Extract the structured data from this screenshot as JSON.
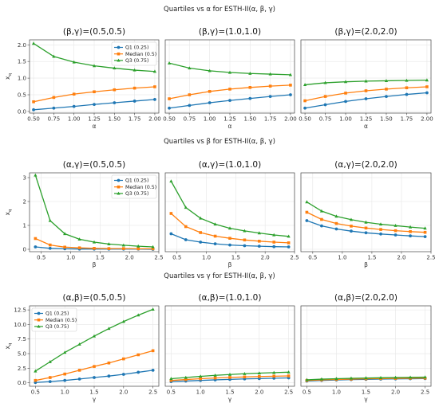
{
  "figure": {
    "colors": {
      "q1": "#1f77b4",
      "median": "#ff7f0e",
      "q3": "#2ca02c",
      "grid": "#e6e6e6",
      "axis": "#444444"
    }
  },
  "chart_data": [
    {
      "type": "line",
      "row_title": "Quartiles vs α for ESTH-II(α, β, γ)",
      "title": "(β,γ)=(0.5,0.5)",
      "xlabel": "α",
      "ylabel": "x_q",
      "xlim": [
        0.45,
        2.05
      ],
      "ylim": [
        -0.05,
        2.15
      ],
      "xticks": [
        "0.50",
        "0.75",
        "1.00",
        "1.25",
        "1.50",
        "1.75",
        "2.00"
      ],
      "yticks": [
        "0.0",
        "0.5",
        "1.0",
        "1.5",
        "2.0"
      ],
      "grid": true,
      "legend": "top-right",
      "x": [
        0.5,
        0.75,
        1.0,
        1.25,
        1.5,
        1.75,
        2.0
      ],
      "series": [
        {
          "name": "Q1 (0.25)",
          "marker": "circle",
          "color": "#1f77b4",
          "values": [
            0.05,
            0.1,
            0.15,
            0.21,
            0.26,
            0.31,
            0.36
          ]
        },
        {
          "name": "Median (0.5)",
          "marker": "square",
          "color": "#ff7f0e",
          "values": [
            0.29,
            0.42,
            0.52,
            0.59,
            0.65,
            0.7,
            0.74
          ]
        },
        {
          "name": "Q3 (0.75)",
          "marker": "triangle",
          "color": "#2ca02c",
          "values": [
            2.04,
            1.65,
            1.48,
            1.37,
            1.3,
            1.24,
            1.2
          ]
        }
      ]
    },
    {
      "type": "line",
      "title": "(β,γ)=(1.0,1.0)",
      "xlabel": "α",
      "ylabel": "",
      "xlim": [
        0.45,
        2.05
      ],
      "ylim": [
        -0.05,
        2.15
      ],
      "xticks": [
        "0.50",
        "0.75",
        "1.00",
        "1.25",
        "1.50",
        "1.75",
        "2.00"
      ],
      "yticks": [],
      "grid": true,
      "x": [
        0.5,
        0.75,
        1.0,
        1.25,
        1.5,
        1.75,
        2.0
      ],
      "series": [
        {
          "name": "Q1 (0.25)",
          "marker": "circle",
          "color": "#1f77b4",
          "values": [
            0.1,
            0.18,
            0.26,
            0.33,
            0.39,
            0.45,
            0.5
          ]
        },
        {
          "name": "Median (0.5)",
          "marker": "square",
          "color": "#ff7f0e",
          "values": [
            0.38,
            0.5,
            0.6,
            0.67,
            0.72,
            0.76,
            0.79
          ]
        },
        {
          "name": "Q3 (0.75)",
          "marker": "triangle",
          "color": "#2ca02c",
          "values": [
            1.45,
            1.3,
            1.22,
            1.17,
            1.14,
            1.12,
            1.1
          ]
        }
      ]
    },
    {
      "type": "line",
      "title": "(β,γ)=(2.0,2.0)",
      "xlabel": "α",
      "ylabel": "",
      "xlim": [
        0.45,
        2.05
      ],
      "ylim": [
        -0.05,
        2.15
      ],
      "xticks": [
        "0.50",
        "0.75",
        "1.00",
        "1.25",
        "1.50",
        "1.75",
        "2.00"
      ],
      "yticks": [],
      "grid": true,
      "x": [
        0.5,
        0.75,
        1.0,
        1.25,
        1.5,
        1.75,
        2.0
      ],
      "series": [
        {
          "name": "Q1 (0.25)",
          "marker": "circle",
          "color": "#1f77b4",
          "values": [
            0.1,
            0.2,
            0.3,
            0.38,
            0.45,
            0.51,
            0.56
          ]
        },
        {
          "name": "Median (0.5)",
          "marker": "square",
          "color": "#ff7f0e",
          "values": [
            0.32,
            0.45,
            0.55,
            0.62,
            0.67,
            0.71,
            0.74
          ]
        },
        {
          "name": "Q3 (0.75)",
          "marker": "triangle",
          "color": "#2ca02c",
          "values": [
            0.8,
            0.86,
            0.89,
            0.91,
            0.92,
            0.93,
            0.94
          ]
        }
      ]
    },
    {
      "type": "line",
      "row_title": "Quartiles vs β for ESTH-II(α, β, γ)",
      "title": "(α,γ)=(0.5,0.5)",
      "xlabel": "β",
      "ylabel": "x_q",
      "xlim": [
        0.3,
        2.5
      ],
      "ylim": [
        -0.1,
        3.2
      ],
      "xticks": [
        "0.5",
        "1.0",
        "1.5",
        "2.0",
        "2.5"
      ],
      "yticks": [
        "0",
        "1",
        "2",
        "3"
      ],
      "grid": true,
      "legend": "top-right",
      "x": [
        0.4,
        0.65,
        0.9,
        1.15,
        1.4,
        1.65,
        1.9,
        2.15,
        2.4
      ],
      "series": [
        {
          "name": "Q1 (0.25)",
          "marker": "circle",
          "color": "#1f77b4",
          "values": [
            0.1,
            0.04,
            0.02,
            0.01,
            0.01,
            0.01,
            0.01,
            0.01,
            0.0
          ]
        },
        {
          "name": "Median (0.5)",
          "marker": "square",
          "color": "#ff7f0e",
          "values": [
            0.45,
            0.18,
            0.09,
            0.06,
            0.04,
            0.03,
            0.03,
            0.02,
            0.02
          ]
        },
        {
          "name": "Q3 (0.75)",
          "marker": "triangle",
          "color": "#2ca02c",
          "values": [
            3.1,
            1.2,
            0.65,
            0.42,
            0.3,
            0.22,
            0.17,
            0.13,
            0.1
          ]
        }
      ]
    },
    {
      "type": "line",
      "title": "(α,γ)=(1.0,1.0)",
      "xlabel": "β",
      "ylabel": "",
      "xlim": [
        0.3,
        2.5
      ],
      "ylim": [
        -0.1,
        3.2
      ],
      "xticks": [
        "0.5",
        "1.0",
        "1.5",
        "2.0",
        "2.5"
      ],
      "yticks": [],
      "grid": true,
      "x": [
        0.4,
        0.65,
        0.9,
        1.15,
        1.4,
        1.65,
        1.9,
        2.15,
        2.4
      ],
      "series": [
        {
          "name": "Q1 (0.25)",
          "marker": "circle",
          "color": "#1f77b4",
          "values": [
            0.65,
            0.4,
            0.3,
            0.23,
            0.18,
            0.15,
            0.13,
            0.11,
            0.1
          ]
        },
        {
          "name": "Median (0.5)",
          "marker": "square",
          "color": "#ff7f0e",
          "values": [
            1.5,
            0.95,
            0.7,
            0.55,
            0.46,
            0.39,
            0.34,
            0.3,
            0.27
          ]
        },
        {
          "name": "Q3 (0.75)",
          "marker": "triangle",
          "color": "#2ca02c",
          "values": [
            2.85,
            1.75,
            1.3,
            1.05,
            0.88,
            0.77,
            0.68,
            0.6,
            0.54
          ]
        }
      ]
    },
    {
      "type": "line",
      "title": "(α,γ)=(2.0,2.0)",
      "xlabel": "β",
      "ylabel": "",
      "xlim": [
        0.3,
        2.5
      ],
      "ylim": [
        -0.1,
        3.2
      ],
      "xticks": [
        "0.5",
        "1.0",
        "1.5",
        "2.0",
        "2.5"
      ],
      "yticks": [],
      "grid": true,
      "x": [
        0.4,
        0.65,
        0.9,
        1.15,
        1.4,
        1.65,
        1.9,
        2.15,
        2.4
      ],
      "series": [
        {
          "name": "Q1 (0.25)",
          "marker": "circle",
          "color": "#1f77b4",
          "values": [
            1.2,
            0.98,
            0.85,
            0.76,
            0.69,
            0.64,
            0.6,
            0.56,
            0.53
          ]
        },
        {
          "name": "Median (0.5)",
          "marker": "square",
          "color": "#ff7f0e",
          "values": [
            1.55,
            1.25,
            1.08,
            0.97,
            0.89,
            0.83,
            0.78,
            0.74,
            0.71
          ]
        },
        {
          "name": "Q3 (0.75)",
          "marker": "triangle",
          "color": "#2ca02c",
          "values": [
            1.98,
            1.6,
            1.38,
            1.24,
            1.13,
            1.05,
            0.99,
            0.93,
            0.88
          ]
        }
      ]
    },
    {
      "type": "line",
      "row_title": "Quartiles vs γ for ESTH-II(α, β, γ)",
      "title": "(α,β)=(0.5,0.5)",
      "xlabel": "γ",
      "ylabel": "x_q",
      "xlim": [
        0.4,
        2.6
      ],
      "ylim": [
        -0.6,
        13.2
      ],
      "xticks": [
        "0.5",
        "1.0",
        "1.5",
        "2.0",
        "2.5"
      ],
      "yticks": [
        "0.0",
        "2.5",
        "5.0",
        "7.5",
        "10.0",
        "12.5"
      ],
      "grid": true,
      "legend": "top-left",
      "x": [
        0.5,
        0.75,
        1.0,
        1.25,
        1.5,
        1.75,
        2.0,
        2.25,
        2.5
      ],
      "series": [
        {
          "name": "Q1 (0.25)",
          "marker": "circle",
          "color": "#1f77b4",
          "values": [
            0.05,
            0.2,
            0.4,
            0.65,
            0.9,
            1.15,
            1.45,
            1.8,
            2.15
          ]
        },
        {
          "name": "Median (0.5)",
          "marker": "square",
          "color": "#ff7f0e",
          "values": [
            0.4,
            0.9,
            1.5,
            2.15,
            2.8,
            3.4,
            4.1,
            4.8,
            5.5
          ]
        },
        {
          "name": "Q3 (0.75)",
          "marker": "triangle",
          "color": "#2ca02c",
          "values": [
            2.0,
            3.6,
            5.2,
            6.6,
            8.0,
            9.3,
            10.5,
            11.6,
            12.6
          ]
        }
      ]
    },
    {
      "type": "line",
      "title": "(α,β)=(1.0,1.0)",
      "xlabel": "γ",
      "ylabel": "",
      "xlim": [
        0.4,
        2.6
      ],
      "ylim": [
        -0.6,
        13.2
      ],
      "xticks": [
        "0.5",
        "1.0",
        "1.5",
        "2.0",
        "2.5"
      ],
      "yticks": [],
      "grid": true,
      "x": [
        0.5,
        0.75,
        1.0,
        1.25,
        1.5,
        1.75,
        2.0,
        2.25,
        2.5
      ],
      "series": [
        {
          "name": "Q1 (0.25)",
          "marker": "circle",
          "color": "#1f77b4",
          "values": [
            0.2,
            0.3,
            0.4,
            0.5,
            0.58,
            0.66,
            0.72,
            0.78,
            0.83
          ]
        },
        {
          "name": "Median (0.5)",
          "marker": "square",
          "color": "#ff7f0e",
          "values": [
            0.4,
            0.55,
            0.7,
            0.82,
            0.92,
            1.0,
            1.07,
            1.13,
            1.18
          ]
        },
        {
          "name": "Q3 (0.75)",
          "marker": "triangle",
          "color": "#2ca02c",
          "values": [
            0.7,
            0.9,
            1.1,
            1.28,
            1.42,
            1.55,
            1.65,
            1.74,
            1.82
          ]
        }
      ]
    },
    {
      "type": "line",
      "title": "(α,β)=(2.0,2.0)",
      "xlabel": "γ",
      "ylabel": "",
      "xlim": [
        0.4,
        2.6
      ],
      "ylim": [
        -0.6,
        13.2
      ],
      "xticks": [
        "0.5",
        "1.0",
        "1.5",
        "2.0",
        "2.5"
      ],
      "yticks": [],
      "grid": true,
      "x": [
        0.5,
        0.75,
        1.0,
        1.25,
        1.5,
        1.75,
        2.0,
        2.25,
        2.5
      ],
      "series": [
        {
          "name": "Q1 (0.25)",
          "marker": "circle",
          "color": "#1f77b4",
          "values": [
            0.3,
            0.4,
            0.48,
            0.54,
            0.59,
            0.63,
            0.66,
            0.69,
            0.71
          ]
        },
        {
          "name": "Median (0.5)",
          "marker": "square",
          "color": "#ff7f0e",
          "values": [
            0.4,
            0.5,
            0.57,
            0.63,
            0.68,
            0.72,
            0.75,
            0.78,
            0.8
          ]
        },
        {
          "name": "Q3 (0.75)",
          "marker": "triangle",
          "color": "#2ca02c",
          "values": [
            0.5,
            0.62,
            0.7,
            0.77,
            0.82,
            0.86,
            0.9,
            0.93,
            0.96
          ]
        }
      ]
    }
  ]
}
